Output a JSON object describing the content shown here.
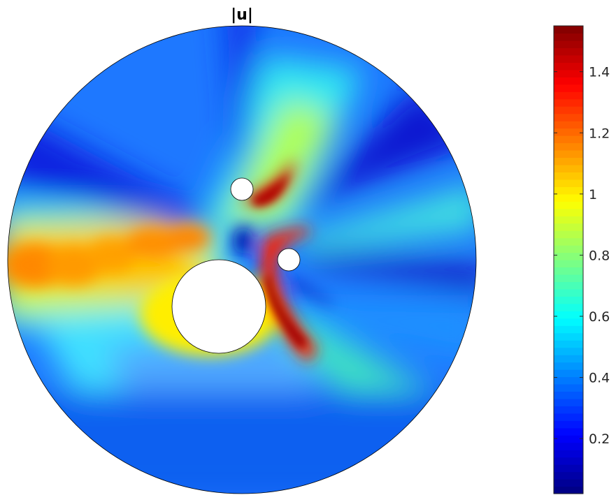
{
  "chart_data": {
    "type": "heatmap",
    "title": "|u|",
    "xlabel": "",
    "ylabel": "",
    "colormap": "jet",
    "colorbar": {
      "position": "right",
      "range": [
        0.02,
        1.55
      ],
      "ticks": [
        0.2,
        0.4,
        0.6,
        0.8,
        1,
        1.2,
        1.4
      ],
      "tick_labels": [
        "0.2",
        "0.4",
        "0.6",
        "0.8",
        "1",
        "1.2",
        "1.4"
      ]
    },
    "domain": {
      "shape": "disk",
      "holes": [
        {
          "name": "large-cylinder"
        },
        {
          "name": "upper-small-cylinder"
        },
        {
          "name": "right-small-cylinder"
        }
      ]
    },
    "grid": false
  }
}
